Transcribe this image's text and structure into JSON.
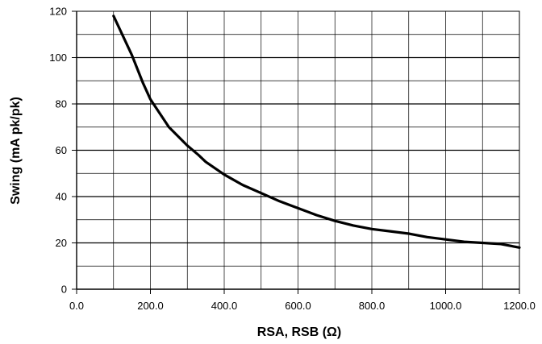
{
  "chart_data": {
    "type": "line",
    "title": "",
    "xlabel": "RSA, RSB (Ω)",
    "ylabel": "Swing (mA pk/pk)",
    "xlim": [
      0,
      1200
    ],
    "ylim": [
      0,
      120
    ],
    "grid": true,
    "x_major_ticks": [
      0,
      200,
      400,
      600,
      800,
      1000,
      1200
    ],
    "x_tick_labels": [
      "0.0",
      "200.0",
      "400.0",
      "600.0",
      "800.0",
      "1000.0",
      "1200.0"
    ],
    "x_minor_step": 100,
    "y_major_ticks": [
      0,
      20,
      40,
      60,
      80,
      100,
      120
    ],
    "y_tick_labels": [
      "0",
      "20",
      "40",
      "60",
      "80",
      "100",
      "120"
    ],
    "y_minor_step": 10,
    "colors": {
      "line": "#000000",
      "grid": "#000000",
      "background": "#ffffff"
    },
    "series": [
      {
        "x": [
          100,
          150,
          180,
          200,
          250,
          300,
          330,
          350,
          400,
          450,
          500,
          550,
          600,
          650,
          700,
          750,
          800,
          850,
          900,
          950,
          1000,
          1050,
          1100,
          1150,
          1200
        ],
        "y": [
          118,
          101,
          89,
          82,
          70,
          62,
          58,
          55,
          49.5,
          45,
          41.5,
          38,
          35,
          32,
          29.5,
          27.5,
          26,
          25,
          24,
          22.5,
          21.5,
          20.5,
          20,
          19.5,
          18
        ]
      }
    ]
  }
}
